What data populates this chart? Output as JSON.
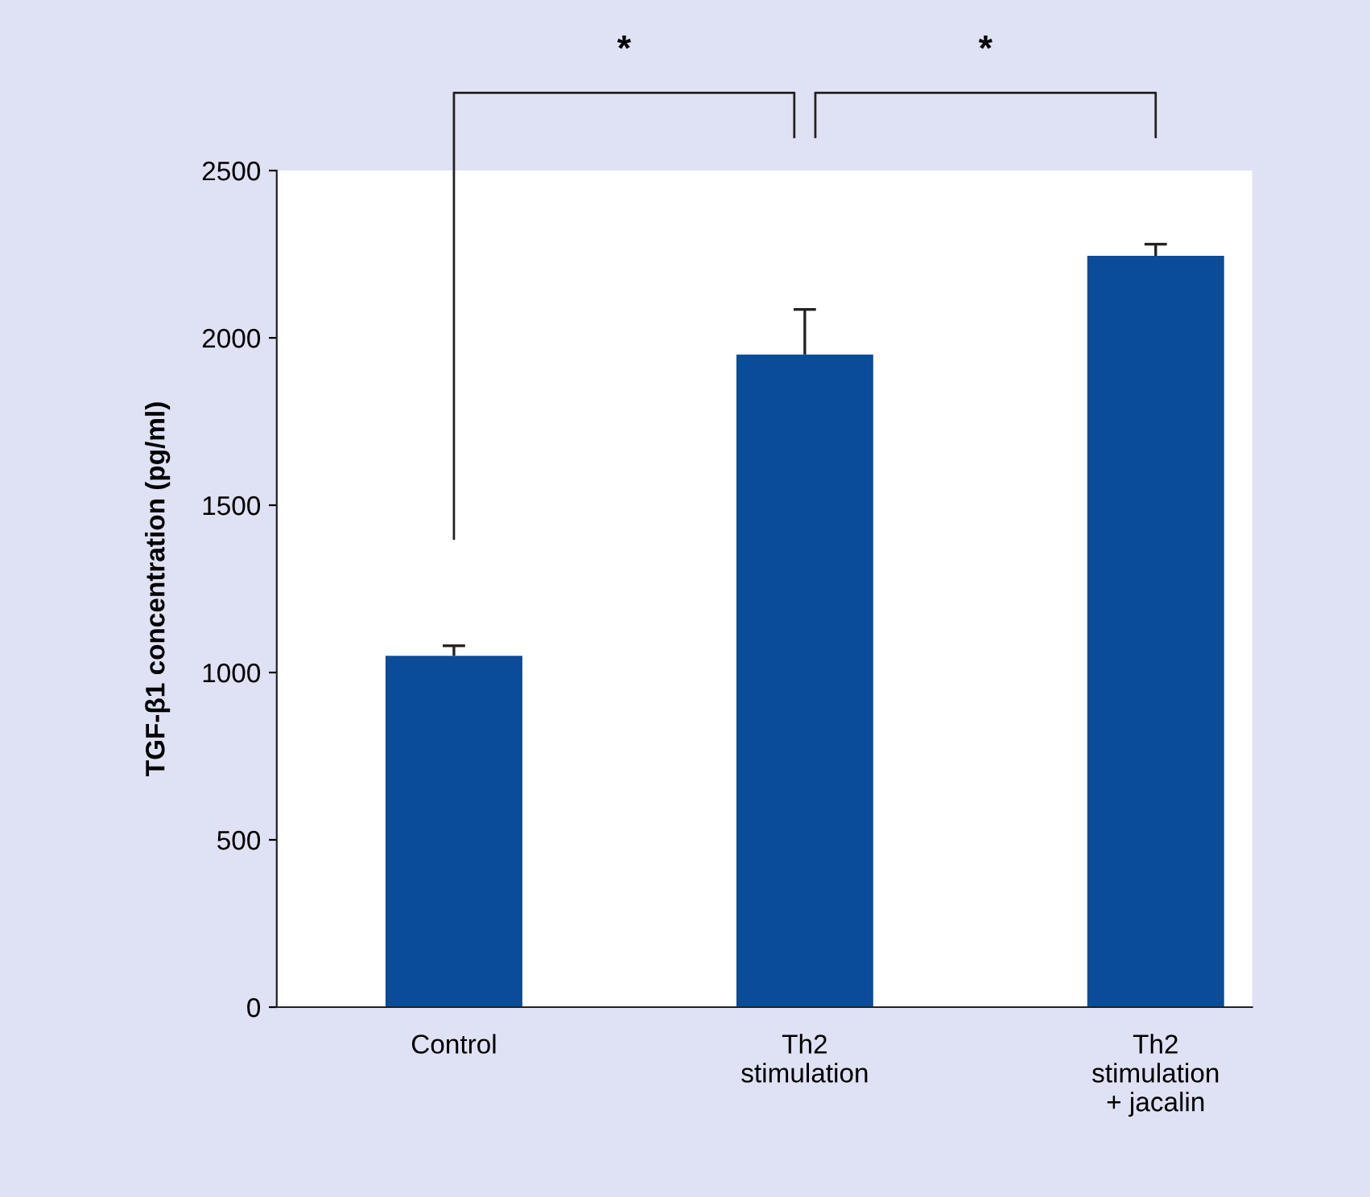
{
  "chart_data": {
    "type": "bar",
    "ylabel": "TGF-β1 concentration (pg/ml)",
    "categories": [
      "Control",
      "Th2\nstimulation",
      "Th2\nstimulation\n+ jacalin"
    ],
    "values": [
      1050,
      1950,
      2245
    ],
    "errors": [
      [
        1050,
        1080
      ],
      [
        1950,
        2085
      ],
      [
        2245,
        2280
      ]
    ],
    "color": "#0b4c98",
    "ylim": [
      0,
      2500
    ],
    "yticks": [
      0,
      500,
      1000,
      1500,
      2000,
      2500
    ],
    "grid": false,
    "annotations": [
      "*",
      "*"
    ]
  }
}
